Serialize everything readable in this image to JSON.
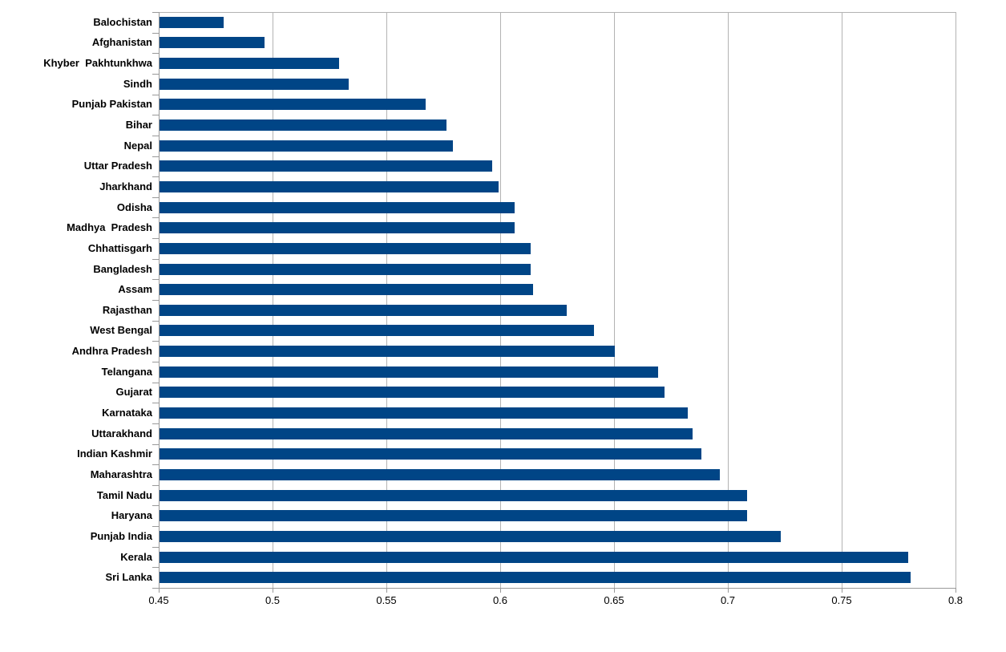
{
  "chart_data": {
    "type": "bar",
    "orientation": "horizontal",
    "title": "",
    "xlabel": "",
    "ylabel": "",
    "legend": "none",
    "grid": "vertical major gridlines",
    "categories": [
      "Balochistan",
      "Afghanistan",
      "Khyber  Pakhtunkhwa",
      "Sindh",
      "Punjab Pakistan",
      "Bihar",
      "Nepal",
      "Uttar Pradesh",
      "Jharkhand",
      "Odisha",
      "Madhya  Pradesh",
      "Chhattisgarh",
      "Bangladesh",
      "Assam",
      "Rajasthan",
      "West Bengal",
      "Andhra Pradesh",
      "Telangana",
      "Gujarat",
      "Karnataka",
      "Uttarakhand",
      "Indian Kashmir",
      "Maharashtra",
      "Tamil Nadu",
      "Haryana",
      "Punjab India",
      "Kerala",
      "Sri Lanka"
    ],
    "values": [
      0.478,
      0.496,
      0.529,
      0.533,
      0.567,
      0.576,
      0.579,
      0.596,
      0.599,
      0.606,
      0.606,
      0.613,
      0.613,
      0.614,
      0.629,
      0.641,
      0.65,
      0.669,
      0.672,
      0.682,
      0.684,
      0.688,
      0.696,
      0.708,
      0.708,
      0.723,
      0.779,
      0.78
    ],
    "xlim": [
      0.45,
      0.8
    ],
    "x_ticks": [
      0.45,
      0.5,
      0.55,
      0.6,
      0.65,
      0.7,
      0.75,
      0.8
    ],
    "x_tick_labels": [
      "0.45",
      "0.5",
      "0.55",
      "0.6",
      "0.65",
      "0.7",
      "0.75",
      "0.8"
    ],
    "colors": {
      "bar": "#004586",
      "gridline": "#b3b3b3",
      "axis": "#999999",
      "text": "#000000",
      "background": "#ffffff"
    }
  }
}
